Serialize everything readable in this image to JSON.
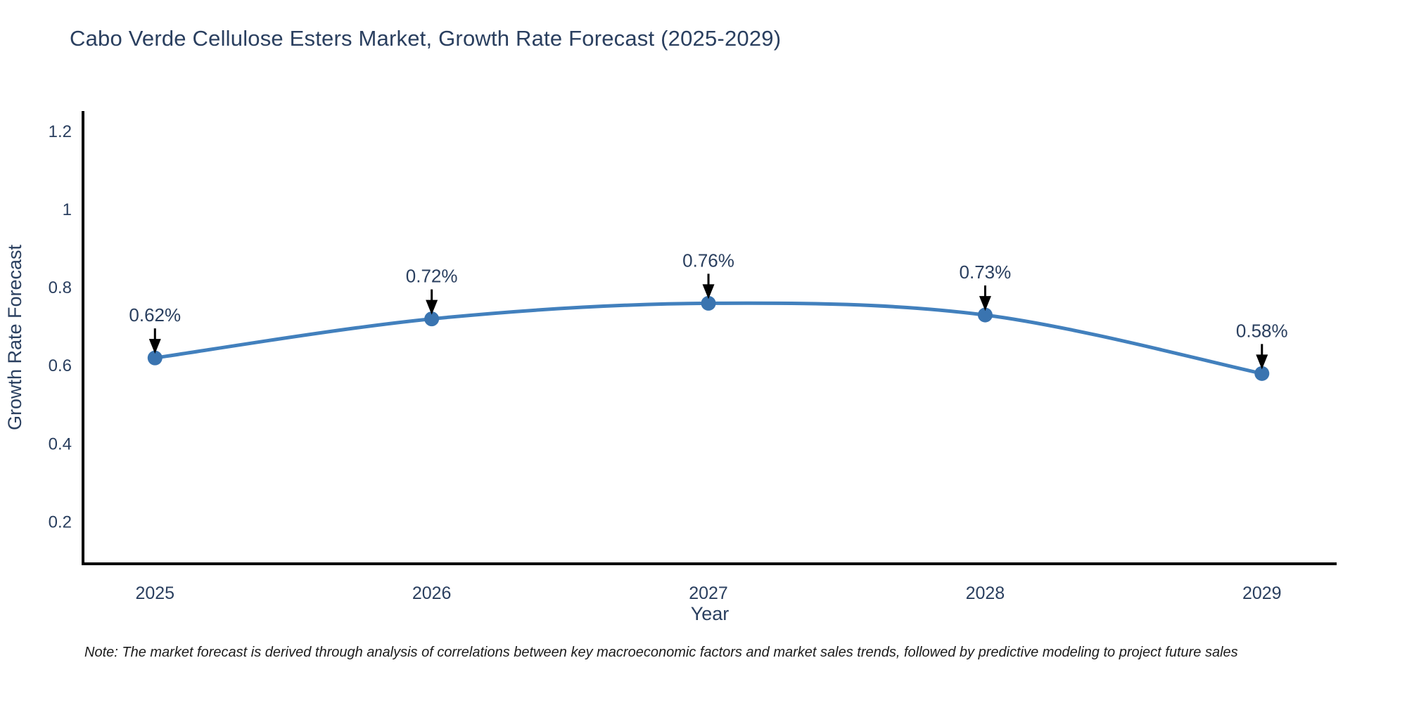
{
  "title": "Cabo Verde Cellulose Esters Market, Growth Rate Forecast (2025-2029)",
  "note": "Note: The market forecast is derived through analysis of correlations between key macroeconomic factors and market sales trends, followed by predictive modeling to project future sales",
  "chart_data": {
    "type": "line",
    "title": "Cabo Verde Cellulose Esters Market, Growth Rate Forecast (2025-2029)",
    "x": [
      2025,
      2026,
      2027,
      2028,
      2029
    ],
    "series": [
      {
        "name": "Growth Rate Forecast",
        "values": [
          0.62,
          0.72,
          0.76,
          0.73,
          0.58
        ]
      }
    ],
    "point_labels": [
      "0.62%",
      "0.72%",
      "0.76%",
      "0.73%",
      "0.58%"
    ],
    "xlabel": "Year",
    "ylabel": "Growth Rate Forecast",
    "xticks": [
      "2025",
      "2026",
      "2027",
      "2028",
      "2029"
    ],
    "yticks": [
      0.2,
      0.4,
      0.6,
      0.8,
      1,
      1.2
    ],
    "ytick_labels": [
      "0.2",
      "0.4",
      "0.6",
      "0.8",
      "1",
      "1.2"
    ],
    "xlim": [
      2024.74,
      2029.27
    ],
    "ylim": [
      0.096,
      1.249
    ],
    "grid": false,
    "legend_position": "none",
    "line_shape": "spline",
    "annotation_arrows": true,
    "colors": {
      "line": "#4280bd",
      "marker": "#3a74b0",
      "text": "#2a3f5f",
      "annotation_text": "#2a3f5f",
      "arrow": "#000000",
      "axis": "#000000",
      "background": "#ffffff"
    }
  }
}
